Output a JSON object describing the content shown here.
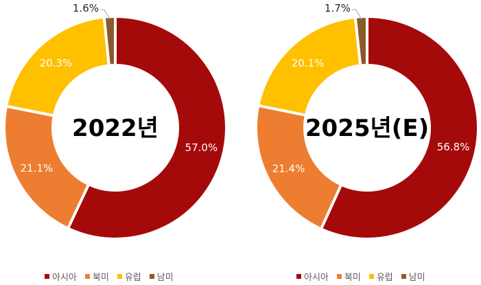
{
  "colors": {
    "asia": "#A50A0A",
    "north_america": "#ED7D31",
    "europe": "#FFC000",
    "south_america": "#8B5A2B"
  },
  "chart_data": [
    {
      "type": "pie",
      "title": "2022년",
      "categories": [
        "아시아",
        "북미",
        "유럽",
        "남미"
      ],
      "values": [
        57.0,
        21.1,
        20.3,
        1.6
      ],
      "labels": [
        "57.0%",
        "21.1%",
        "20.3%",
        "1.6%"
      ],
      "legend": "bottom"
    },
    {
      "type": "pie",
      "title": "2025년(E)",
      "categories": [
        "아시아",
        "북미",
        "유럽",
        "남미"
      ],
      "values": [
        56.8,
        21.4,
        20.1,
        1.7
      ],
      "labels": [
        "56.8%",
        "21.4%",
        "20.1%",
        "1.7%"
      ],
      "legend": "bottom"
    }
  ]
}
